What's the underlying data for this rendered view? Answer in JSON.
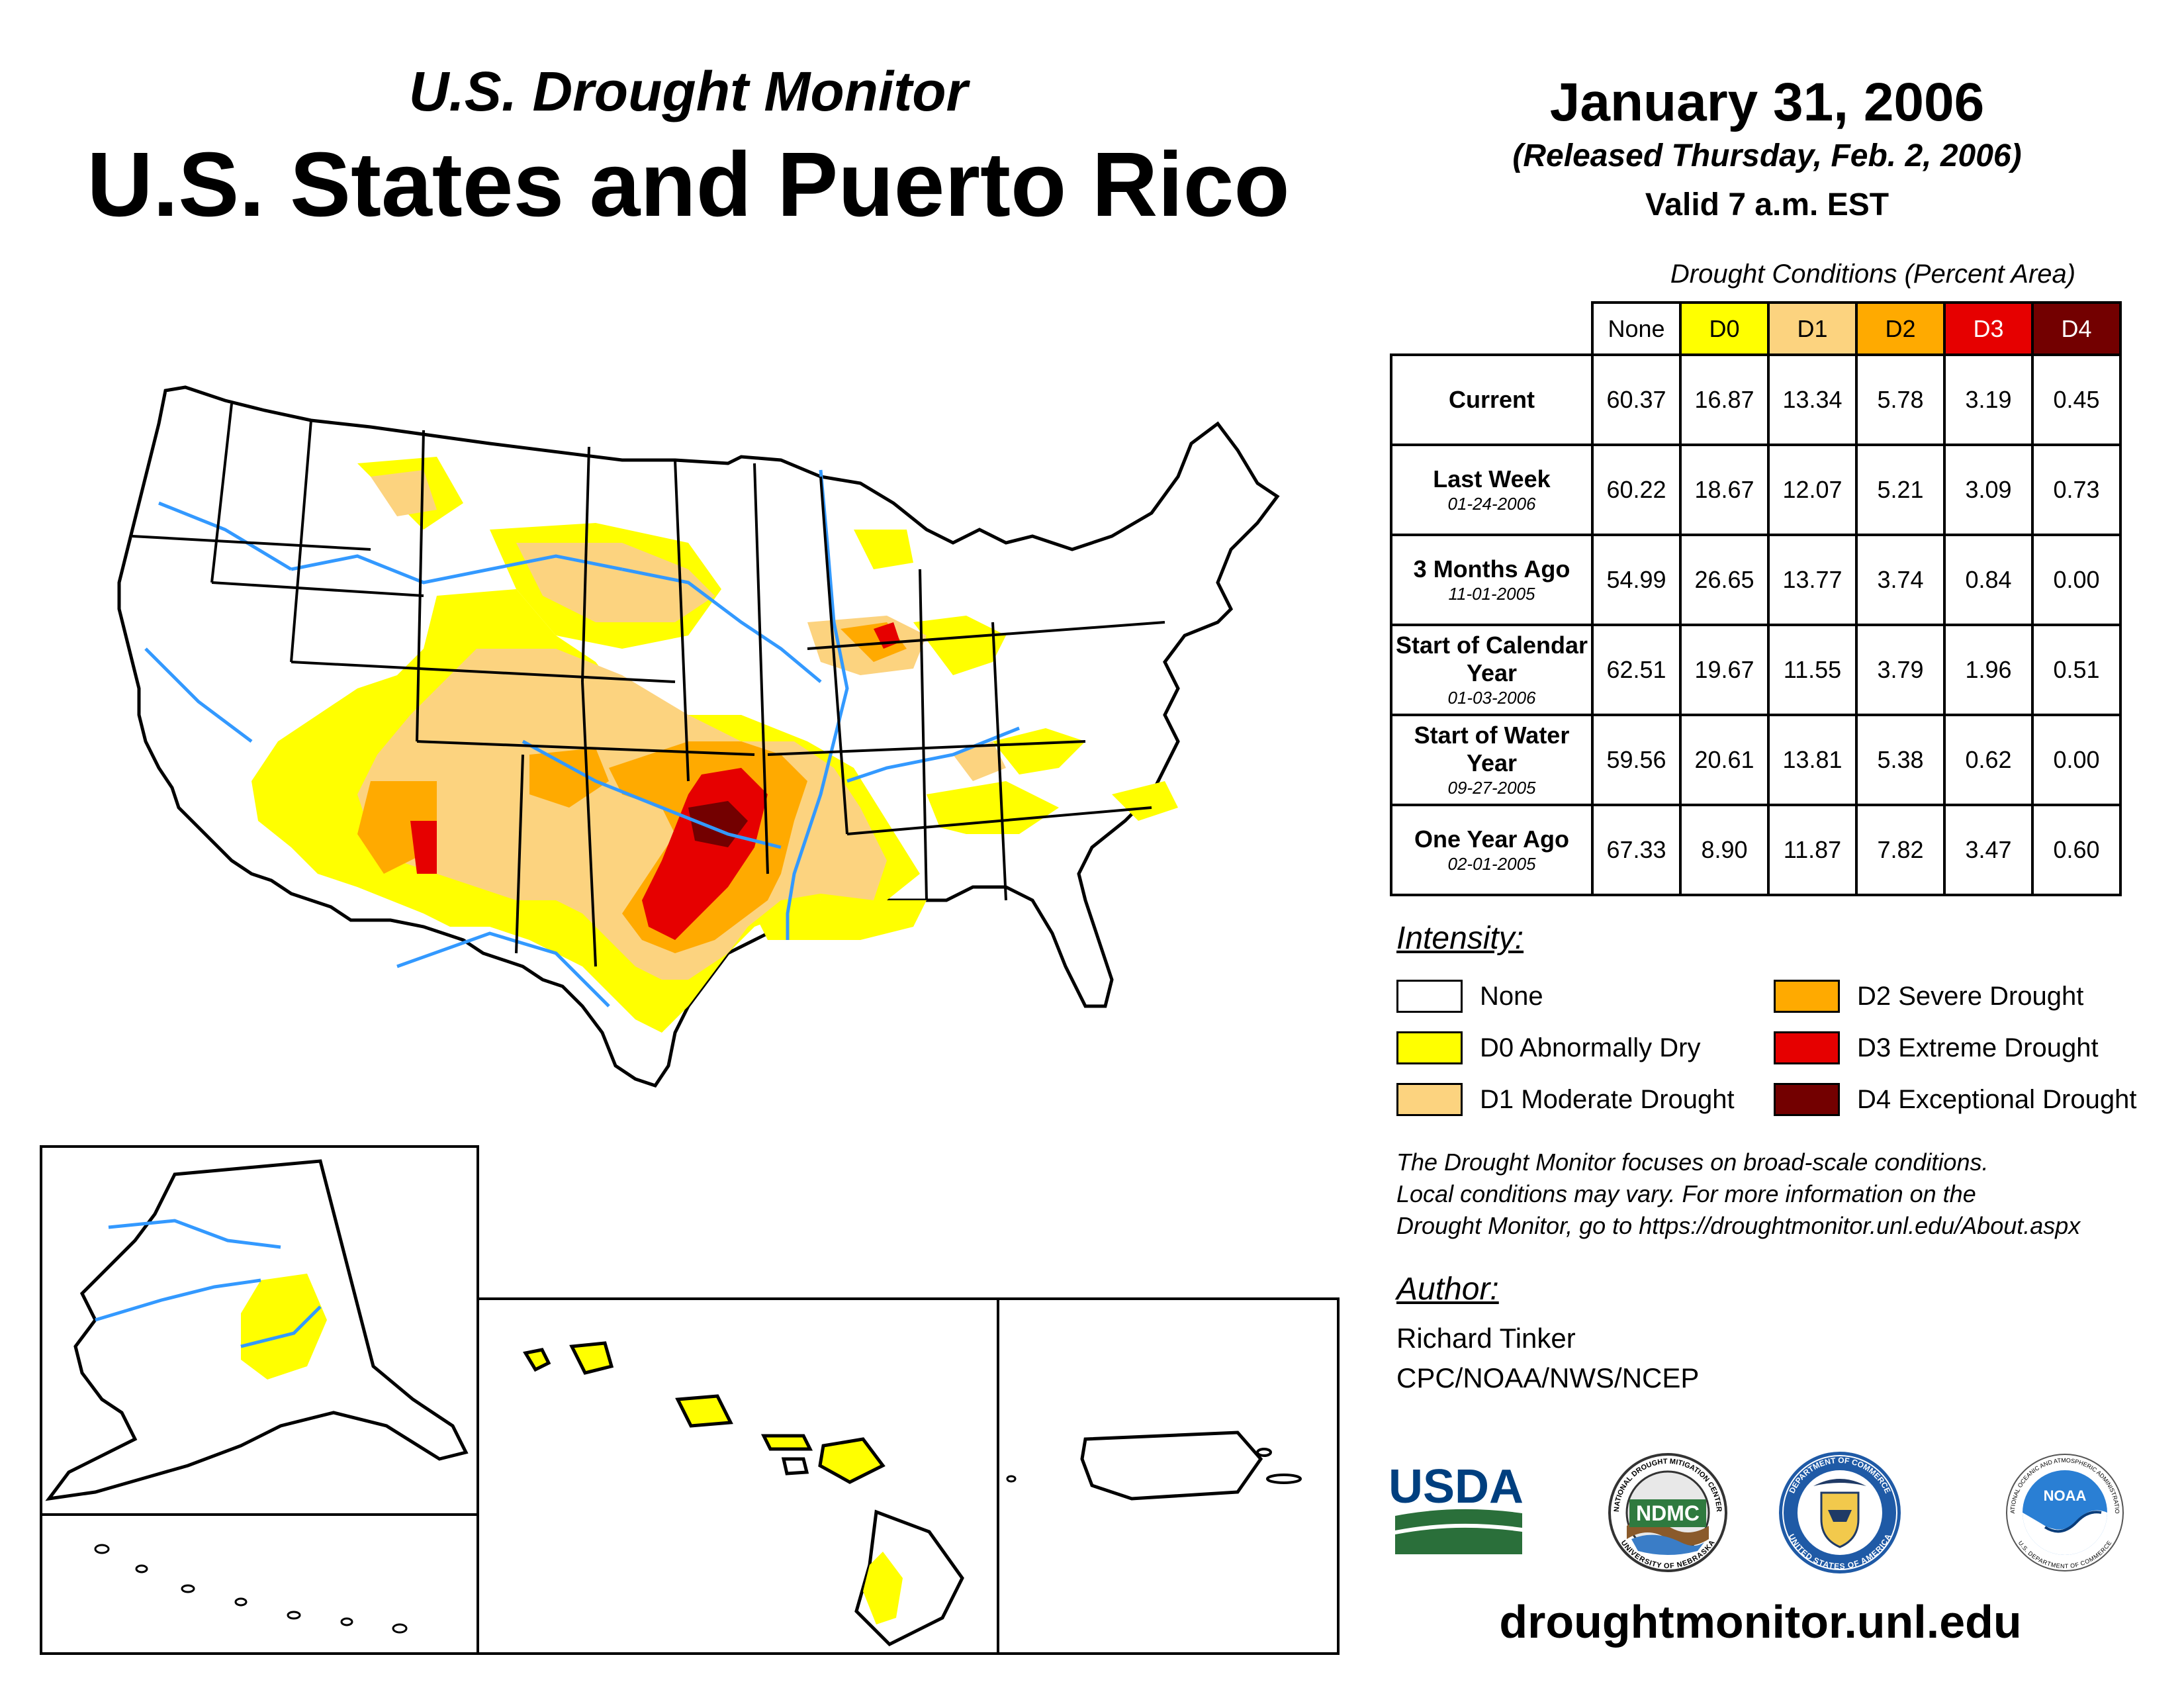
{
  "header": {
    "subtitle": "U.S. Drought Monitor",
    "title": "U.S. States and Puerto Rico",
    "date": "January 31, 2006",
    "released": "(Released Thursday, Feb. 2, 2006)",
    "valid": "Valid 7 a.m. EST"
  },
  "table": {
    "caption": "Drought Conditions (Percent Area)",
    "columns": [
      "None",
      "D0",
      "D1",
      "D2",
      "D3",
      "D4"
    ],
    "column_colors": [
      "#ffffff",
      "#ffff00",
      "#fcd37f",
      "#ffaa00",
      "#e60000",
      "#730000"
    ],
    "rows": [
      {
        "label": "Current",
        "sub": "",
        "values": [
          "60.37",
          "16.87",
          "13.34",
          "5.78",
          "3.19",
          "0.45"
        ]
      },
      {
        "label": "Last Week",
        "sub": "01-24-2006",
        "values": [
          "60.22",
          "18.67",
          "12.07",
          "5.21",
          "3.09",
          "0.73"
        ]
      },
      {
        "label": "3 Months Ago",
        "sub": "11-01-2005",
        "values": [
          "54.99",
          "26.65",
          "13.77",
          "3.74",
          "0.84",
          "0.00"
        ]
      },
      {
        "label": "Start of Calendar Year",
        "sub": "01-03-2006",
        "values": [
          "62.51",
          "19.67",
          "11.55",
          "3.79",
          "1.96",
          "0.51"
        ]
      },
      {
        "label": "Start of Water Year",
        "sub": "09-27-2005",
        "values": [
          "59.56",
          "20.61",
          "13.81",
          "5.38",
          "0.62",
          "0.00"
        ]
      },
      {
        "label": "One Year Ago",
        "sub": "02-01-2005",
        "values": [
          "67.33",
          "8.90",
          "11.87",
          "7.82",
          "3.47",
          "0.60"
        ]
      }
    ]
  },
  "legend": {
    "title": "Intensity:",
    "items": [
      {
        "label": "None",
        "color": "#ffffff"
      },
      {
        "label": "D0 Abnormally Dry",
        "color": "#ffff00"
      },
      {
        "label": "D1 Moderate Drought",
        "color": "#fcd37f"
      },
      {
        "label": "D2 Severe Drought",
        "color": "#ffaa00"
      },
      {
        "label": "D3 Extreme Drought",
        "color": "#e60000"
      },
      {
        "label": "D4 Exceptional Drought",
        "color": "#730000"
      }
    ]
  },
  "note": {
    "line1": "The Drought Monitor focuses on broad-scale conditions.",
    "line2": "Local conditions may vary. For more information on the",
    "line3": "Drought Monitor, go to https://droughtmonitor.unl.edu/About.aspx"
  },
  "author": {
    "label": "Author:",
    "name": "Richard Tinker",
    "org": "CPC/NOAA/NWS/NCEP"
  },
  "logos": {
    "usda": "USDA",
    "ndmc": "NDMC",
    "ndmc_ring_top": "NATIONAL DROUGHT MITIGATION CENTER",
    "ndmc_ring_bottom": "UNIVERSITY OF NEBRASKA",
    "commerce_ring_top": "DEPARTMENT OF COMMERCE",
    "commerce_ring_bottom": "UNITED STATES OF AMERICA",
    "noaa": "NOAA",
    "noaa_ring_top": "NATIONAL OCEANIC AND ATMOSPHERIC ADMINISTRATION",
    "noaa_ring_bottom": "U.S. DEPARTMENT OF COMMERCE"
  },
  "website": "droughtmonitor.unl.edu",
  "colors": {
    "water": "#3399ff",
    "border": "#000000"
  }
}
